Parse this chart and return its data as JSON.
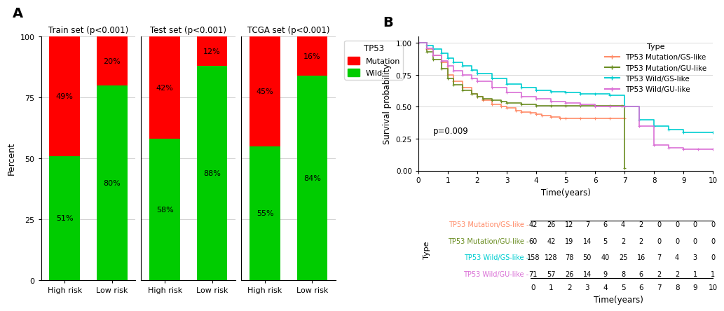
{
  "bar_sets": [
    {
      "title": "Train set (p<0.001)",
      "categories": [
        "High risk",
        "Low risk"
      ],
      "wild": [
        51,
        80
      ],
      "mutation": [
        49,
        20
      ]
    },
    {
      "title": "Test set (p<0.001)",
      "categories": [
        "High risk",
        "Low risk"
      ],
      "wild": [
        58,
        88
      ],
      "mutation": [
        42,
        12
      ]
    },
    {
      "title": "TCGA set (p<0.001)",
      "categories": [
        "High risk",
        "Low risk"
      ],
      "wild": [
        55,
        84
      ],
      "mutation": [
        45,
        16
      ]
    }
  ],
  "bar_wild_color": "#00CC00",
  "bar_mutation_color": "#FF0000",
  "bar_ylabel": "Percent",
  "bar_yticks": [
    0,
    25,
    50,
    75,
    100
  ],
  "legend_title": "TP53",
  "legend_mutation_label": "Mutation",
  "legend_wild_label": "Wild",
  "km_xlabel": "Time(years)",
  "km_ylabel": "Survival probability",
  "km_pvalue": "p=0.009",
  "km_curves": [
    {
      "label": "TP53 Mutation/GS-like",
      "color": "#FF8C69",
      "times": [
        0,
        0.3,
        0.5,
        0.8,
        1.0,
        1.2,
        1.5,
        1.8,
        2.0,
        2.2,
        2.5,
        2.8,
        3.0,
        3.3,
        3.5,
        3.8,
        4.0,
        4.2,
        4.5,
        4.8,
        5.0,
        5.5,
        6.0,
        6.5,
        7.0
      ],
      "survival": [
        1.0,
        0.95,
        0.9,
        0.85,
        0.75,
        0.7,
        0.65,
        0.6,
        0.58,
        0.55,
        0.52,
        0.5,
        0.49,
        0.47,
        0.46,
        0.45,
        0.44,
        0.43,
        0.42,
        0.41,
        0.41,
        0.41,
        0.41,
        0.41,
        0.41
      ]
    },
    {
      "label": "TP53 Mutation/GU-like",
      "color": "#6B8E23",
      "times": [
        0,
        0.3,
        0.5,
        0.8,
        1.0,
        1.2,
        1.5,
        1.8,
        2.0,
        2.2,
        2.5,
        2.8,
        3.0,
        3.5,
        4.0,
        4.5,
        5.0,
        5.5,
        6.0,
        6.5,
        6.9,
        7.0
      ],
      "survival": [
        1.0,
        0.93,
        0.87,
        0.8,
        0.72,
        0.67,
        0.63,
        0.6,
        0.58,
        0.56,
        0.55,
        0.54,
        0.53,
        0.52,
        0.51,
        0.51,
        0.51,
        0.51,
        0.51,
        0.51,
        0.51,
        0.02
      ]
    },
    {
      "label": "TP53 Wild/GS-like",
      "color": "#00CED1",
      "times": [
        0,
        0.3,
        0.5,
        0.8,
        1.0,
        1.2,
        1.5,
        1.8,
        2.0,
        2.5,
        3.0,
        3.5,
        4.0,
        4.5,
        5.0,
        5.5,
        6.0,
        6.5,
        7.0,
        7.5,
        8.0,
        8.5,
        9.0,
        10.0
      ],
      "survival": [
        1.0,
        0.98,
        0.95,
        0.92,
        0.88,
        0.85,
        0.82,
        0.79,
        0.76,
        0.72,
        0.68,
        0.65,
        0.63,
        0.62,
        0.61,
        0.6,
        0.6,
        0.59,
        0.5,
        0.4,
        0.35,
        0.32,
        0.3,
        0.3
      ]
    },
    {
      "label": "TP53 Wild/GU-like",
      "color": "#DA70D6",
      "times": [
        0,
        0.3,
        0.5,
        0.8,
        1.0,
        1.2,
        1.5,
        1.8,
        2.0,
        2.5,
        3.0,
        3.5,
        4.0,
        4.5,
        5.0,
        5.5,
        6.0,
        6.5,
        7.0,
        7.5,
        8.0,
        8.5,
        9.0,
        9.5,
        10.0
      ],
      "survival": [
        1.0,
        0.96,
        0.9,
        0.86,
        0.82,
        0.78,
        0.75,
        0.72,
        0.7,
        0.65,
        0.61,
        0.58,
        0.56,
        0.54,
        0.53,
        0.52,
        0.5,
        0.5,
        0.5,
        0.35,
        0.2,
        0.18,
        0.17,
        0.17,
        0.17
      ]
    }
  ],
  "risk_table": {
    "times": [
      0,
      1,
      2,
      3,
      4,
      5,
      6,
      7,
      8,
      9,
      10
    ],
    "rows": [
      {
        "label": "TP53 Mutation/GS-like",
        "color": "#FF8C69",
        "counts": [
          42,
          26,
          12,
          7,
          6,
          4,
          2,
          0,
          0,
          0,
          0
        ]
      },
      {
        "label": "TP53 Mutation/GU-like",
        "color": "#6B8E23",
        "counts": [
          60,
          42,
          19,
          14,
          5,
          2,
          2,
          0,
          0,
          0,
          0
        ]
      },
      {
        "label": "TP53 Wild/GS-like",
        "color": "#00CED1",
        "counts": [
          158,
          128,
          78,
          50,
          40,
          25,
          16,
          7,
          4,
          3,
          0
        ]
      },
      {
        "label": "TP53 Wild/GU-like",
        "color": "#DA70D6",
        "counts": [
          71,
          57,
          26,
          14,
          9,
          8,
          6,
          2,
          2,
          1,
          1
        ]
      }
    ],
    "type_label": "Type"
  },
  "background_color": "#FFFFFF"
}
